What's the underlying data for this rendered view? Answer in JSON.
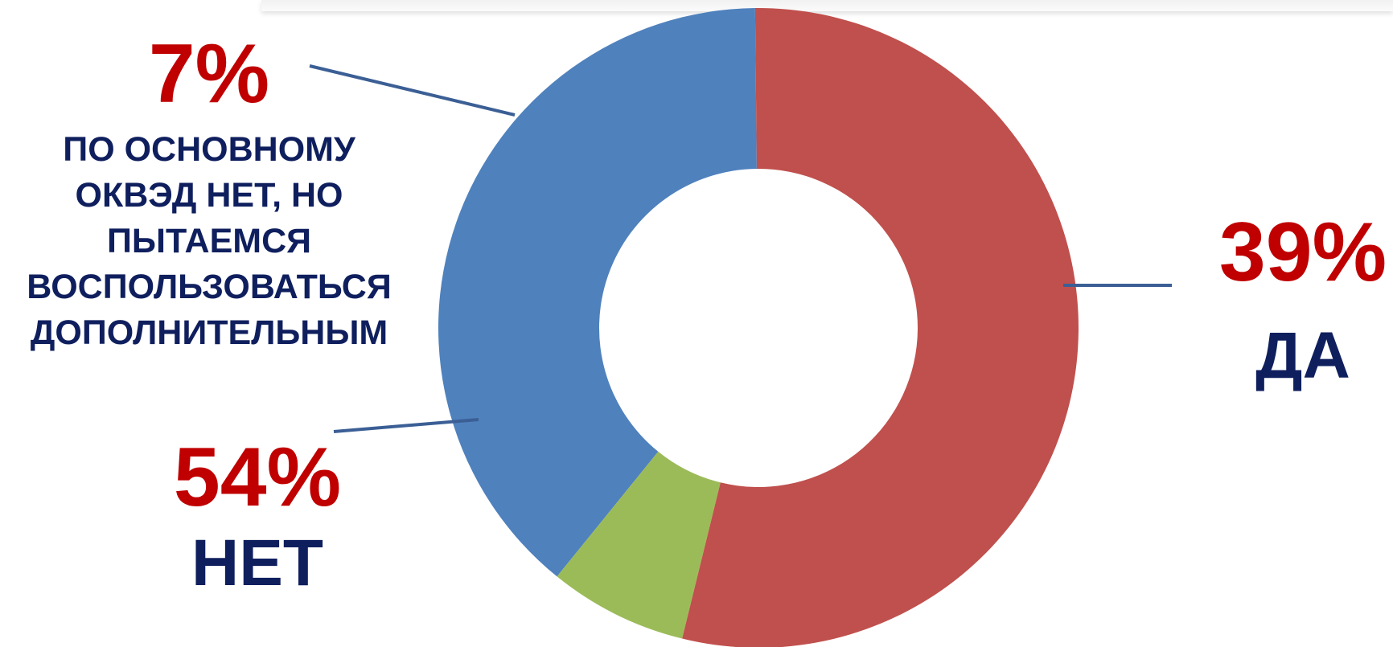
{
  "chart_data": {
    "type": "pie",
    "donut": true,
    "title": "",
    "legend": "none",
    "slices": [
      {
        "label": "ДА",
        "value": 39,
        "value_text": "39%",
        "color": "#4f81bd"
      },
      {
        "label": "НЕТ",
        "value": 54,
        "value_text": "54%",
        "color": "#c0504d"
      },
      {
        "label": "ПО ОСНОВНОМУ ОКВЭД НЕТ, НО ПЫТАЕМСЯ ВОСПОЛЬЗОВАТЬСЯ ДОПОЛНИТЕЛЬНЫМ",
        "value": 7,
        "value_text": "7%",
        "color": "#9bbb59"
      }
    ],
    "colors": {
      "value_label": "#c00000",
      "category_label": "#0f1f5e",
      "leader_line": "#3b5f95"
    }
  }
}
